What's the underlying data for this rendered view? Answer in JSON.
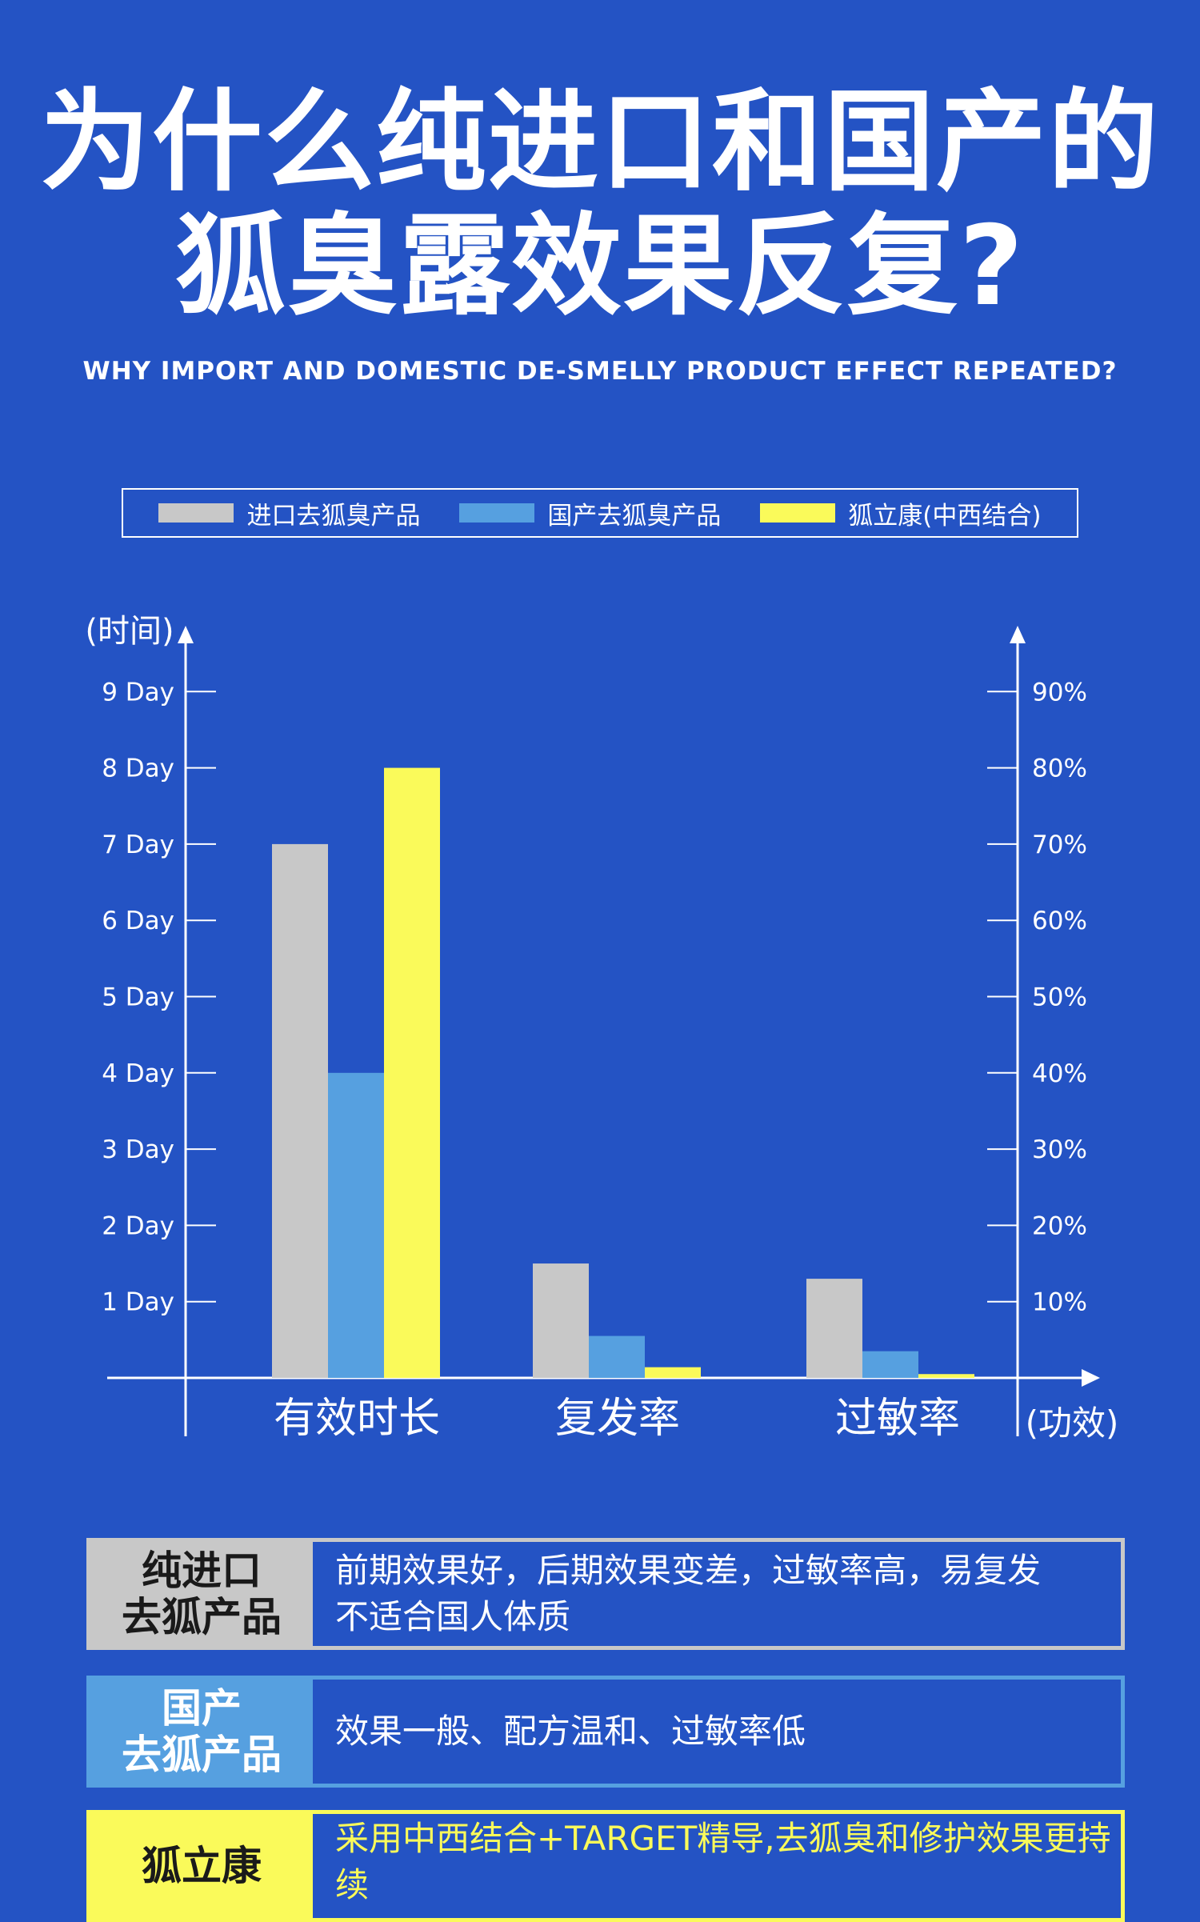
{
  "title_line1": "为什么纯进口和国产的",
  "title_line2": "狐臭露效果反复?",
  "subtitle": "WHY IMPORT AND DOMESTIC DE-SMELLY PRODUCT EFFECT REPEATED?",
  "colors": {
    "background": "#2453c4",
    "imported": "#c8c8c8",
    "domestic": "#56a0e0",
    "ours": "#fafa5a"
  },
  "legend": [
    {
      "label": "进口去狐臭产品",
      "color": "#c8c8c8"
    },
    {
      "label": "国产去狐臭产品",
      "color": "#56a0e0"
    },
    {
      "label": "狐立康(中西结合)",
      "color": "#fafa5a"
    }
  ],
  "chart_data": {
    "type": "bar",
    "categories": [
      "有效时长",
      "复发率",
      "过敏率"
    ],
    "series": [
      {
        "name": "进口去狐臭产品",
        "values": [
          7,
          1.5,
          1.3
        ]
      },
      {
        "name": "国产去狐臭产品",
        "values": [
          4,
          0.55,
          0.35
        ]
      },
      {
        "name": "狐立康(中西结合)",
        "values": [
          8,
          0.14,
          0.05
        ]
      }
    ],
    "ylabel": "(时间)",
    "xlabel": "(功效)",
    "y_ticks": [
      "1 Day",
      "2 Day",
      "3 Day",
      "4 Day",
      "5 Day",
      "6 Day",
      "7 Day",
      "8 Day",
      "9 Day"
    ],
    "y2_ticks": [
      "10%",
      "20%",
      "30%",
      "40%",
      "50%",
      "60%",
      "70%",
      "80%",
      "90%"
    ],
    "ylim": [
      0,
      9
    ],
    "y2lim": [
      0,
      90
    ],
    "grid": false,
    "legend_position": "top"
  },
  "table": {
    "imported_label_1": "纯进口",
    "imported_label_2": "去狐产品",
    "imported_desc_1": "前期效果好，后期效果变差，过敏率高，易复发",
    "imported_desc_2": "不适合国人体质",
    "domestic_label_1": "国产",
    "domestic_label_2": "去狐产品",
    "domestic_desc_1": "效果一般、配方温和、过敏率低",
    "ours_label_1": "狐立康",
    "ours_desc_1": "采用中西结合+TARGET精导,去狐臭和修护效果更持续"
  }
}
